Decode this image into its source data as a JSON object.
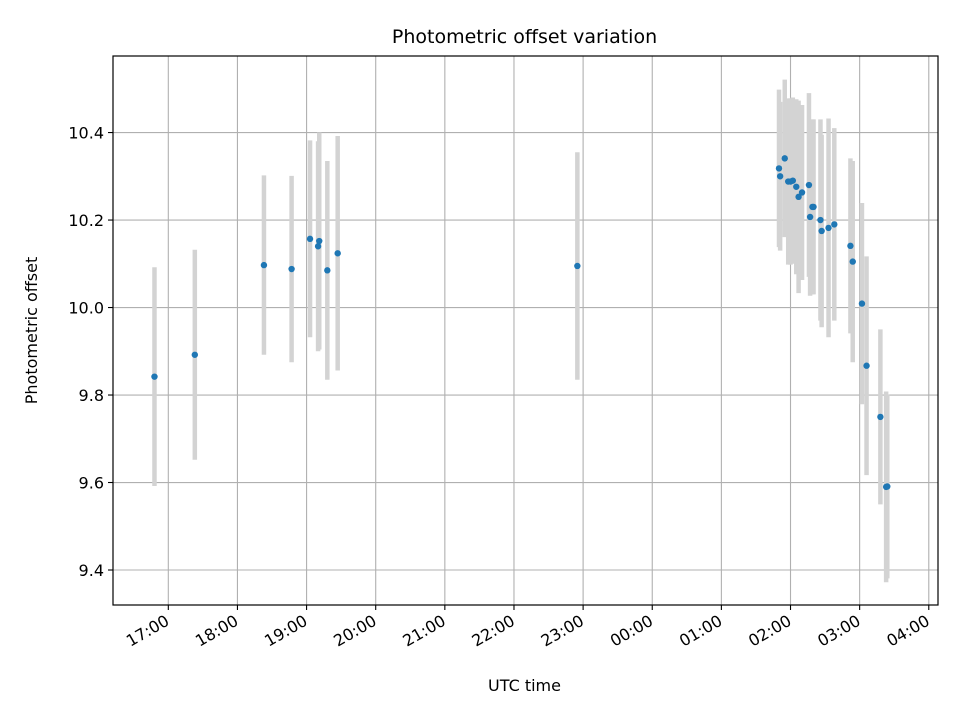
{
  "chart_data": {
    "type": "scatter",
    "title": "Photometric offset variation",
    "xlabel": "UTC time",
    "ylabel": "Photometric offset",
    "x_tick_labels": [
      "17:00",
      "18:00",
      "19:00",
      "20:00",
      "21:00",
      "22:00",
      "23:00",
      "00:00",
      "01:00",
      "02:00",
      "03:00",
      "04:00"
    ],
    "y_tick_labels": [
      "9.4",
      "9.6",
      "9.8",
      "10.0",
      "10.2",
      "10.4"
    ],
    "y_ticks": [
      9.4,
      9.6,
      9.8,
      10.0,
      10.2,
      10.4
    ],
    "xlim": [
      "16:12",
      "04:08"
    ],
    "ylim": [
      9.32,
      10.575
    ],
    "grid": true,
    "marker_color": "#1f77b4",
    "errorbar_color": "#d3d3d3",
    "points": [
      {
        "x": "16:48",
        "y": 9.842,
        "err": 0.25
      },
      {
        "x": "17:23",
        "y": 9.892,
        "err": 0.24
      },
      {
        "x": "18:23",
        "y": 10.097,
        "err": 0.205
      },
      {
        "x": "18:47",
        "y": 10.088,
        "err": 0.213
      },
      {
        "x": "19:03",
        "y": 10.157,
        "err": 0.225
      },
      {
        "x": "19:10",
        "y": 10.14,
        "err": 0.24
      },
      {
        "x": "19:11",
        "y": 10.152,
        "err": 0.248
      },
      {
        "x": "19:18",
        "y": 10.085,
        "err": 0.25
      },
      {
        "x": "19:27",
        "y": 10.124,
        "err": 0.268
      },
      {
        "x": "22:55",
        "y": 10.095,
        "err": 0.26
      },
      {
        "x": "01:50",
        "y": 10.318,
        "err": 0.18
      },
      {
        "x": "01:51",
        "y": 10.3,
        "err": 0.17
      },
      {
        "x": "01:55",
        "y": 10.341,
        "err": 0.18
      },
      {
        "x": "01:58",
        "y": 10.288,
        "err": 0.19
      },
      {
        "x": "02:00",
        "y": 10.288,
        "err": 0.19
      },
      {
        "x": "02:02",
        "y": 10.29,
        "err": 0.19
      },
      {
        "x": "02:05",
        "y": 10.276,
        "err": 0.2
      },
      {
        "x": "02:07",
        "y": 10.253,
        "err": 0.22
      },
      {
        "x": "02:10",
        "y": 10.263,
        "err": 0.2
      },
      {
        "x": "02:16",
        "y": 10.28,
        "err": 0.21
      },
      {
        "x": "02:17",
        "y": 10.207,
        "err": 0.18
      },
      {
        "x": "02:19",
        "y": 10.23,
        "err": 0.2
      },
      {
        "x": "02:20",
        "y": 10.23,
        "err": 0.2
      },
      {
        "x": "02:26",
        "y": 10.2,
        "err": 0.23
      },
      {
        "x": "02:27",
        "y": 10.175,
        "err": 0.22
      },
      {
        "x": "02:33",
        "y": 10.182,
        "err": 0.25
      },
      {
        "x": "02:38",
        "y": 10.19,
        "err": 0.22
      },
      {
        "x": "02:52",
        "y": 10.141,
        "err": 0.2
      },
      {
        "x": "02:54",
        "y": 10.105,
        "err": 0.23
      },
      {
        "x": "03:02",
        "y": 10.009,
        "err": 0.23
      },
      {
        "x": "03:06",
        "y": 9.867,
        "err": 0.25
      },
      {
        "x": "03:18",
        "y": 9.75,
        "err": 0.2
      },
      {
        "x": "03:23",
        "y": 9.59,
        "err": 0.218
      },
      {
        "x": "03:24",
        "y": 9.591,
        "err": 0.21
      }
    ]
  }
}
